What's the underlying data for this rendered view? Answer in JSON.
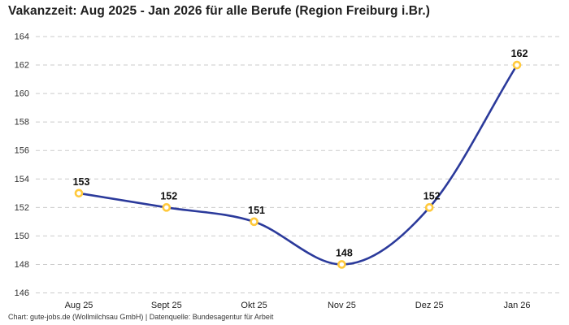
{
  "title": "Vakanzzeit: Aug 2025 - Jan 2026 für alle Berufe (Region Freiburg i.Br.)",
  "footer": "Chart: gute-jobs.de (Wollmilchsau GmbH) | Datenquelle: Bundesagentur für Arbeit",
  "colors": {
    "background": "#ffffff",
    "line": "#2b3a9b",
    "marker_stroke": "#ffc93c",
    "marker_fill": "#ffffff",
    "grid": "#cbcbcb",
    "title_text": "#1f1f1f",
    "axis_text": "#333333",
    "value_label": "#111111"
  },
  "chart_data": {
    "type": "line",
    "categories": [
      "Aug 25",
      "Sept 25",
      "Okt 25",
      "Nov 25",
      "Dez 25",
      "Jan 26"
    ],
    "values": [
      153,
      152,
      151,
      148,
      152,
      162
    ],
    "title": "Vakanzzeit: Aug 2025 - Jan 2026 für alle Berufe (Region Freiburg i.Br.)",
    "xlabel": "",
    "ylabel": "",
    "ylim": [
      146,
      164
    ],
    "ytick_step": 2,
    "yticks": [
      146,
      148,
      150,
      152,
      154,
      156,
      158,
      160,
      162,
      164
    ],
    "grid": true,
    "grid_style": "dashed",
    "legend": false,
    "line_style": "smooth",
    "marker": "open-circle",
    "data_labels": true
  }
}
